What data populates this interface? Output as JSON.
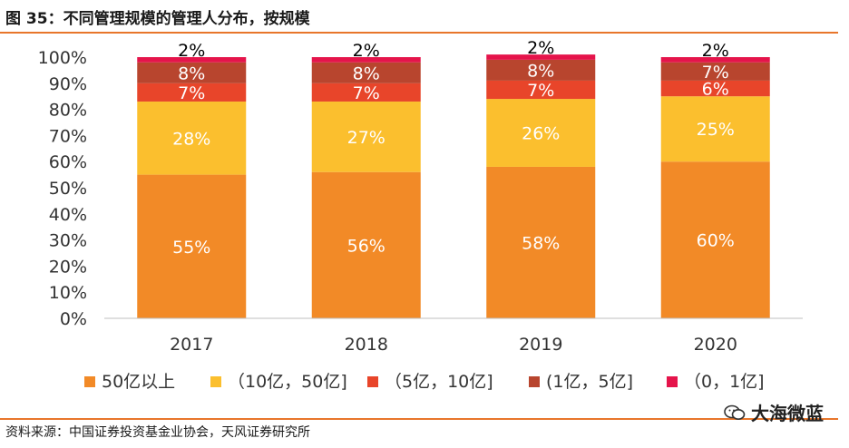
{
  "figure": {
    "title": "图 35：不同管理规模的管理人分布，按规模",
    "source": "资料来源：中国证券投资基金业协会，天风证券研究所",
    "watermark": "大海微蓝"
  },
  "chart_data": {
    "type": "bar",
    "stacked": true,
    "categories": [
      "2017",
      "2018",
      "2019",
      "2020"
    ],
    "series": [
      {
        "name": "50亿以上",
        "values": [
          55,
          56,
          58,
          60
        ],
        "color": "#f28a27",
        "label_color": "#ffffff"
      },
      {
        "name": "（10亿，50亿]",
        "values": [
          28,
          27,
          26,
          25
        ],
        "color": "#fbbf2e",
        "label_color": "#ffffff"
      },
      {
        "name": "（5亿，10亿]",
        "values": [
          7,
          7,
          7,
          6
        ],
        "color": "#e8452a",
        "label_color": "#ffffff"
      },
      {
        "name": "(1亿，5亿]",
        "values": [
          8,
          8,
          8,
          7
        ],
        "color": "#b8452e",
        "label_color": "#ffffff"
      },
      {
        "name": "（0，1亿]",
        "values": [
          2,
          2,
          2,
          2
        ],
        "color": "#e5144b",
        "label_color": "#000000"
      }
    ],
    "yticks": [
      "0%",
      "10%",
      "20%",
      "30%",
      "40%",
      "50%",
      "60%",
      "70%",
      "80%",
      "90%",
      "100%"
    ],
    "ylim": [
      0,
      100
    ],
    "xlabel": "",
    "ylabel": "",
    "grid": false,
    "legend_position": "bottom"
  }
}
